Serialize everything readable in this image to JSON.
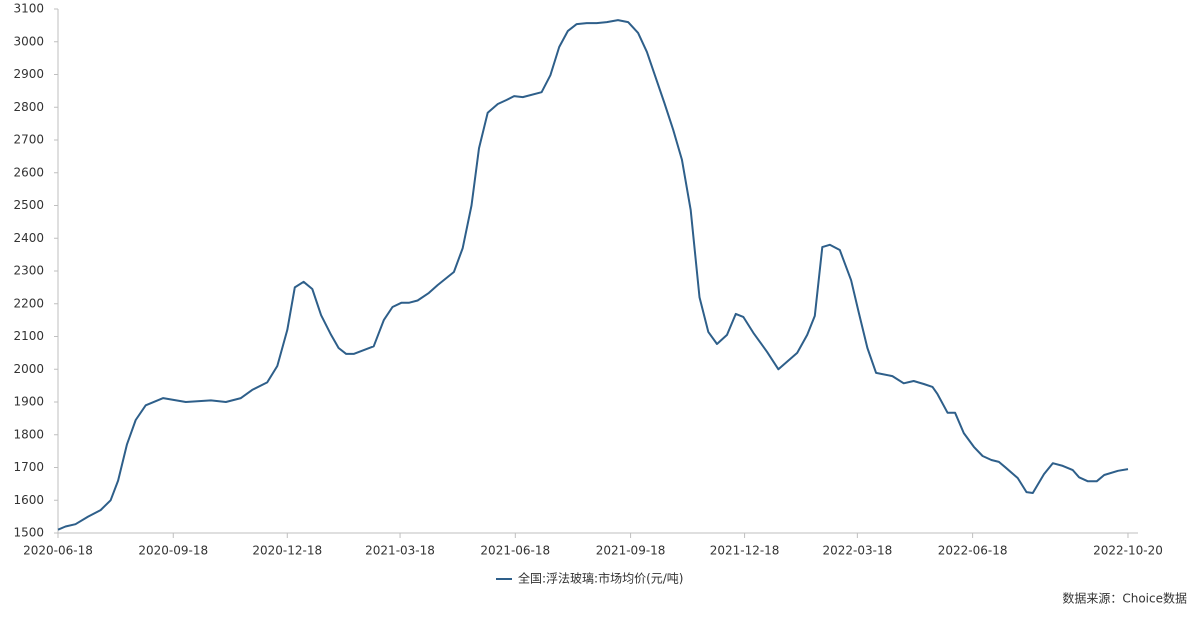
{
  "chart_data": {
    "type": "line",
    "x": [
      "2020-06-18",
      "2020-06-24",
      "2020-07-02",
      "2020-07-12",
      "2020-07-22",
      "2020-07-30",
      "2020-08-05",
      "2020-08-12",
      "2020-08-19",
      "2020-08-27",
      "2020-09-10",
      "2020-09-28",
      "2020-10-18",
      "2020-10-30",
      "2020-11-11",
      "2020-11-20",
      "2020-12-02",
      "2020-12-10",
      "2020-12-18",
      "2020-12-24",
      "2020-12-31",
      "2021-01-07",
      "2021-01-14",
      "2021-01-22",
      "2021-01-28",
      "2021-02-03",
      "2021-02-09",
      "2021-02-25",
      "2021-03-05",
      "2021-03-12",
      "2021-03-19",
      "2021-03-25",
      "2021-04-01",
      "2021-04-10",
      "2021-04-17",
      "2021-04-30",
      "2021-05-07",
      "2021-05-14",
      "2021-05-20",
      "2021-05-27",
      "2021-06-04",
      "2021-06-11",
      "2021-06-17",
      "2021-06-24",
      "2021-07-09",
      "2021-07-16",
      "2021-07-23",
      "2021-07-30",
      "2021-08-06",
      "2021-08-14",
      "2021-08-22",
      "2021-08-30",
      "2021-09-08",
      "2021-09-16",
      "2021-09-24",
      "2021-10-01",
      "2021-10-15",
      "2021-10-22",
      "2021-10-29",
      "2021-11-05",
      "2021-11-12",
      "2021-11-19",
      "2021-11-26",
      "2021-12-04",
      "2021-12-11",
      "2021-12-17",
      "2021-12-25",
      "2022-01-05",
      "2022-01-14",
      "2022-01-29",
      "2022-02-06",
      "2022-02-12",
      "2022-02-18",
      "2022-02-24",
      "2022-03-04",
      "2022-03-13",
      "2022-03-19",
      "2022-03-26",
      "2022-04-02",
      "2022-04-15",
      "2022-04-24",
      "2022-05-02",
      "2022-05-10",
      "2022-05-17",
      "2022-05-21",
      "2022-05-29",
      "2022-06-04",
      "2022-06-11",
      "2022-06-19",
      "2022-06-26",
      "2022-07-03",
      "2022-07-09",
      "2022-07-14",
      "2022-07-24",
      "2022-07-31",
      "2022-08-05",
      "2022-08-14",
      "2022-08-21",
      "2022-08-29",
      "2022-09-06",
      "2022-09-11",
      "2022-09-18",
      "2022-09-25",
      "2022-10-01",
      "2022-10-12",
      "2022-10-20"
    ],
    "series": [
      {
        "name": "全国:浮法玻璃:市场均价(元/吨)",
        "color": "#2e5f8a",
        "values": [
          1510,
          1520,
          1527,
          1550,
          1570,
          1600,
          1660,
          1770,
          1845,
          1890,
          1912,
          1900,
          1905,
          1900,
          1912,
          1937,
          1960,
          2010,
          2120,
          2250,
          2267,
          2245,
          2165,
          2105,
          2065,
          2047,
          2047,
          2070,
          2150,
          2190,
          2203,
          2203,
          2210,
          2233,
          2257,
          2297,
          2370,
          2500,
          2675,
          2783,
          2810,
          2822,
          2834,
          2831,
          2846,
          2898,
          2984,
          3033,
          3054,
          3057,
          3057,
          3060,
          3066,
          3060,
          3027,
          2969,
          2813,
          2731,
          2640,
          2486,
          2220,
          2114,
          2077,
          2105,
          2169,
          2160,
          2111,
          2053,
          2000,
          2050,
          2105,
          2163,
          2373,
          2380,
          2364,
          2272,
          2175,
          2065,
          1989,
          1979,
          1957,
          1964,
          1955,
          1946,
          1924,
          1867,
          1867,
          1805,
          1763,
          1735,
          1723,
          1717,
          1701,
          1668,
          1625,
          1622,
          1680,
          1713,
          1705,
          1692,
          1670,
          1658,
          1658,
          1677,
          1690,
          1695
        ]
      }
    ],
    "xlim": [
      "2020-06-18",
      "2022-10-28"
    ],
    "xticks": [
      "2020-06-18",
      "2020-09-18",
      "2020-12-18",
      "2021-03-18",
      "2021-06-18",
      "2021-09-18",
      "2021-12-18",
      "2022-03-18",
      "2022-06-18",
      "2022-10-20"
    ],
    "ylim": [
      1500,
      3100
    ],
    "yticks": [
      1500,
      1600,
      1700,
      1800,
      1900,
      2000,
      2100,
      2200,
      2300,
      2400,
      2500,
      2600,
      2700,
      2800,
      2900,
      3000,
      3100
    ],
    "grid": false,
    "source": "数据来源：Choice数据"
  }
}
